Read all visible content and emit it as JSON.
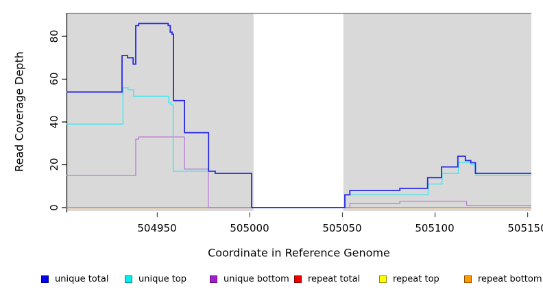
{
  "chart_data": {
    "type": "line",
    "subtype": "step",
    "title": "",
    "xlabel": "Coordinate in Reference Genome",
    "ylabel": "Read Coverage Depth",
    "xlim": [
      504901,
      505152
    ],
    "ylim": [
      0,
      91
    ],
    "grid": false,
    "legend_position": "bottom",
    "xticks": [
      504950,
      505000,
      505050,
      505100,
      505150
    ],
    "xticklabels": [
      "504950",
      "505000",
      "505050",
      "505100",
      "505150"
    ],
    "yticks": [
      0,
      20,
      40,
      60,
      80
    ],
    "yticklabels": [
      "0",
      "20",
      "40",
      "60",
      "80"
    ],
    "background_regions": [
      {
        "name": "covered-region-left",
        "x0": 504901,
        "x1": 505002,
        "color": "#d9d9d9"
      },
      {
        "name": "covered-region-right",
        "x0": 505050.5,
        "x1": 505152,
        "color": "#d9d9d9"
      }
    ],
    "plot_colors": {
      "region_fill": "#d9d9d9",
      "top_border": "#8a8a8a",
      "axis": "#000000",
      "xtick_color": "#444444"
    },
    "series": [
      {
        "name": "repeat total",
        "color": "#ee0000",
        "width": 1.3,
        "points": [
          [
            504901,
            0
          ],
          [
            505152,
            0
          ]
        ]
      },
      {
        "name": "repeat top",
        "color": "#ffff00",
        "width": 1.3,
        "points": [
          [
            504901,
            0
          ],
          [
            505152,
            0
          ]
        ]
      },
      {
        "name": "repeat bottom",
        "color": "#ff9414",
        "width": 1.6,
        "points": [
          [
            504901,
            0
          ],
          [
            505152,
            0
          ]
        ]
      },
      {
        "name": "unique bottom",
        "color": "#bd7bd5",
        "width": 1.3,
        "points": [
          [
            504901,
            15
          ],
          [
            504938.4,
            32
          ],
          [
            504940,
            33
          ],
          [
            504964.7,
            18
          ],
          [
            504977.6,
            0
          ],
          [
            505054,
            2
          ],
          [
            505081,
            3
          ],
          [
            505117,
            1
          ],
          [
            505152,
            1
          ]
        ]
      },
      {
        "name": "unique top",
        "color": "#40e7ef",
        "width": 1.4,
        "points": [
          [
            504901,
            39
          ],
          [
            504931.5,
            56
          ],
          [
            504934.2,
            55
          ],
          [
            504937.2,
            52
          ],
          [
            504956.2,
            49
          ],
          [
            504957.4,
            48
          ],
          [
            504958.6,
            17
          ],
          [
            504981.5,
            16
          ],
          [
            505001,
            0
          ],
          [
            505051.5,
            6
          ],
          [
            505096.3,
            11
          ],
          [
            505103.8,
            16
          ],
          [
            505112.6,
            21
          ],
          [
            505119.5,
            20
          ],
          [
            505122,
            15
          ],
          [
            505152,
            15
          ]
        ]
      },
      {
        "name": "unique total",
        "color": "#2727e8",
        "width": 1.8,
        "points": [
          [
            504901,
            54
          ],
          [
            504931,
            71
          ],
          [
            504934,
            70
          ],
          [
            504937,
            67
          ],
          [
            504938.4,
            85
          ],
          [
            504940,
            86
          ],
          [
            504955.9,
            85
          ],
          [
            504957,
            82
          ],
          [
            504958,
            81
          ],
          [
            504958.8,
            50
          ],
          [
            504964.7,
            35
          ],
          [
            504977.7,
            17
          ],
          [
            504981.3,
            16
          ],
          [
            505001,
            0
          ],
          [
            505051.3,
            6
          ],
          [
            505054,
            8
          ],
          [
            505081,
            9
          ],
          [
            505096,
            14
          ],
          [
            505103.5,
            19
          ],
          [
            505112.3,
            24
          ],
          [
            505116.4,
            22
          ],
          [
            505119.3,
            21
          ],
          [
            505121.8,
            16
          ],
          [
            505152,
            16
          ]
        ]
      }
    ],
    "legend": [
      {
        "label": "unique total",
        "color": "#0000ee"
      },
      {
        "label": "unique top",
        "color": "#00eeee"
      },
      {
        "label": "unique bottom",
        "color": "#a21fd0"
      },
      {
        "label": "repeat total",
        "color": "#ee0000"
      },
      {
        "label": "repeat top",
        "color": "#ffff00"
      },
      {
        "label": "repeat bottom",
        "color": "#ff9900"
      }
    ]
  }
}
